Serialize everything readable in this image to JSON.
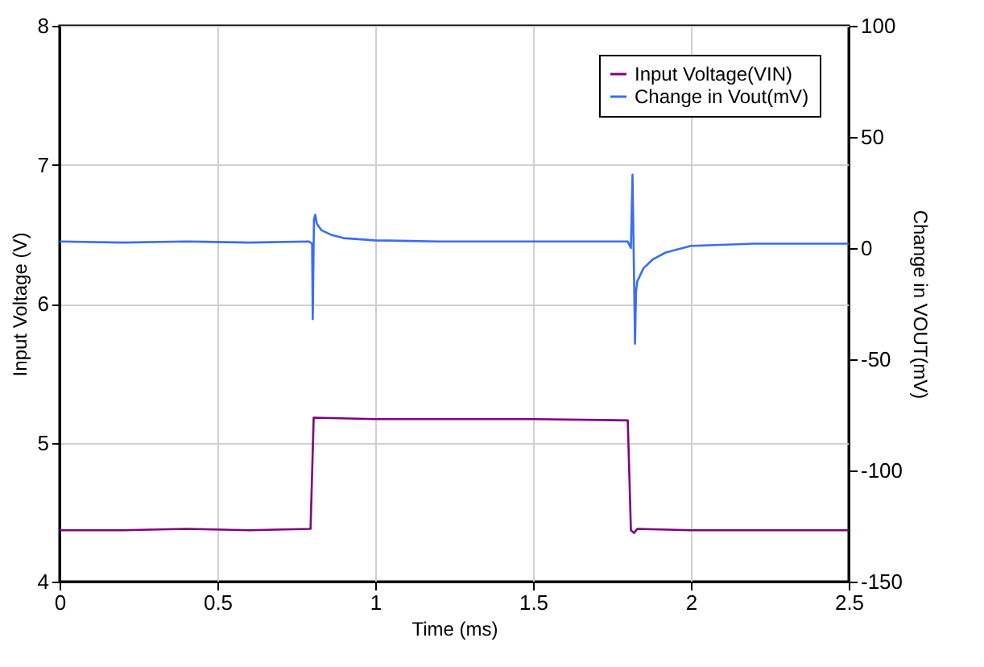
{
  "chart_data": {
    "type": "line",
    "xlabel": "Time (ms)",
    "ylabel": "Input Voltage (V)",
    "y2label": "Change in VOUT(mV)",
    "xlim": [
      0,
      2.5
    ],
    "xticks": [
      0,
      0.5,
      1,
      1.5,
      2,
      2.5
    ],
    "ylim": [
      4,
      8
    ],
    "yticks": [
      4,
      5,
      6,
      7,
      8
    ],
    "y2lim": [
      -150,
      100
    ],
    "y2ticks": [
      -150,
      -100,
      -50,
      0,
      50,
      100
    ],
    "grid": true,
    "legend": "top right",
    "series": [
      {
        "name": "Input Voltage(VIN)",
        "color": "#800080",
        "x": [
          0,
          0.2,
          0.4,
          0.6,
          0.795,
          0.805,
          1.0,
          1.25,
          1.5,
          1.8,
          1.81,
          1.82,
          1.83,
          2.0,
          2.25,
          2.5
        ],
        "values": [
          4.37,
          4.37,
          4.38,
          4.37,
          4.38,
          5.18,
          5.17,
          5.17,
          5.17,
          5.16,
          4.37,
          4.35,
          4.38,
          4.37,
          4.37,
          4.37
        ]
      },
      {
        "name": "Change in Vout(mV)",
        "color": "#3a6cf4",
        "axis": "y2",
        "x": [
          0,
          0.2,
          0.4,
          0.6,
          0.79,
          0.8,
          0.802,
          0.805,
          0.806,
          0.81,
          0.815,
          0.83,
          0.86,
          0.9,
          1.0,
          1.2,
          1.4,
          1.6,
          1.8,
          1.81,
          1.815,
          1.818,
          1.823,
          1.826,
          1.83,
          1.85,
          1.88,
          1.92,
          2.0,
          2.2,
          2.4,
          2.5
        ],
        "values": [
          3,
          2.5,
          3,
          2.5,
          3,
          2,
          -32,
          3,
          13,
          15,
          11,
          8,
          6,
          4.5,
          3.5,
          3,
          3,
          3,
          3,
          0,
          33,
          5,
          -43,
          -20,
          -15,
          -9,
          -5,
          -2,
          1,
          2,
          2,
          2
        ]
      }
    ]
  }
}
